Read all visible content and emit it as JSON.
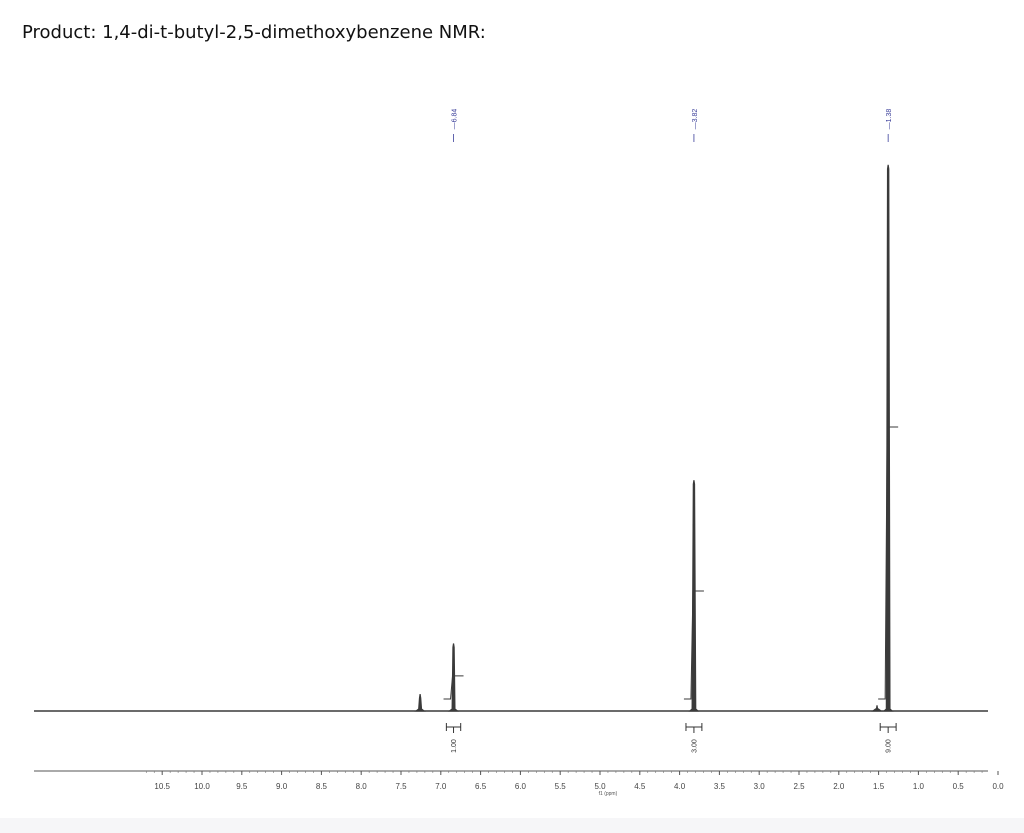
{
  "page": {
    "title": "Product: 1,4-di-t-butyl-2,5-dimethoxybenzene NMR:"
  },
  "chart_data": {
    "type": "line",
    "title": "",
    "xlabel": "f1 (ppm)",
    "ylabel": "",
    "xlim": [
      10.8,
      -0.1
    ],
    "axis_reversed": true,
    "tick_labels": [
      "10.5",
      "10.0",
      "9.5",
      "9.0",
      "8.5",
      "8.0",
      "7.5",
      "7.0",
      "6.5",
      "6.0",
      "5.5",
      "5.0",
      "4.5",
      "4.0",
      "3.5",
      "3.0",
      "2.5",
      "2.0",
      "1.5",
      "1.0",
      "0.5",
      "0.0"
    ],
    "tick_values": [
      10.5,
      10.0,
      9.5,
      9.0,
      8.5,
      8.0,
      7.5,
      7.0,
      6.5,
      6.0,
      5.5,
      5.0,
      4.5,
      4.0,
      3.5,
      3.0,
      2.5,
      2.0,
      1.5,
      1.0,
      0.5,
      0.0
    ],
    "peaks": [
      {
        "shift": 7.26,
        "height": 0.03
      },
      {
        "shift": 6.84,
        "height": 0.12
      },
      {
        "shift": 3.82,
        "height": 0.41
      },
      {
        "shift": 1.52,
        "height": 0.01
      },
      {
        "shift": 1.38,
        "height": 0.97
      }
    ],
    "peak_labels": [
      "6.84",
      "3.82",
      "1.38"
    ],
    "peak_label_shifts": [
      6.84,
      3.82,
      1.38
    ],
    "integrations": [
      {
        "shift": 6.84,
        "value": "1.00",
        "from": 6.93,
        "to": 6.75
      },
      {
        "shift": 3.82,
        "value": "3.00",
        "from": 3.92,
        "to": 3.72
      },
      {
        "shift": 1.38,
        "value": "9.00",
        "from": 1.48,
        "to": 1.28
      }
    ],
    "colors": {
      "spectrum": "#3a3a3a",
      "peak_label": "#3b3f9a",
      "integral": "#333333"
    }
  }
}
